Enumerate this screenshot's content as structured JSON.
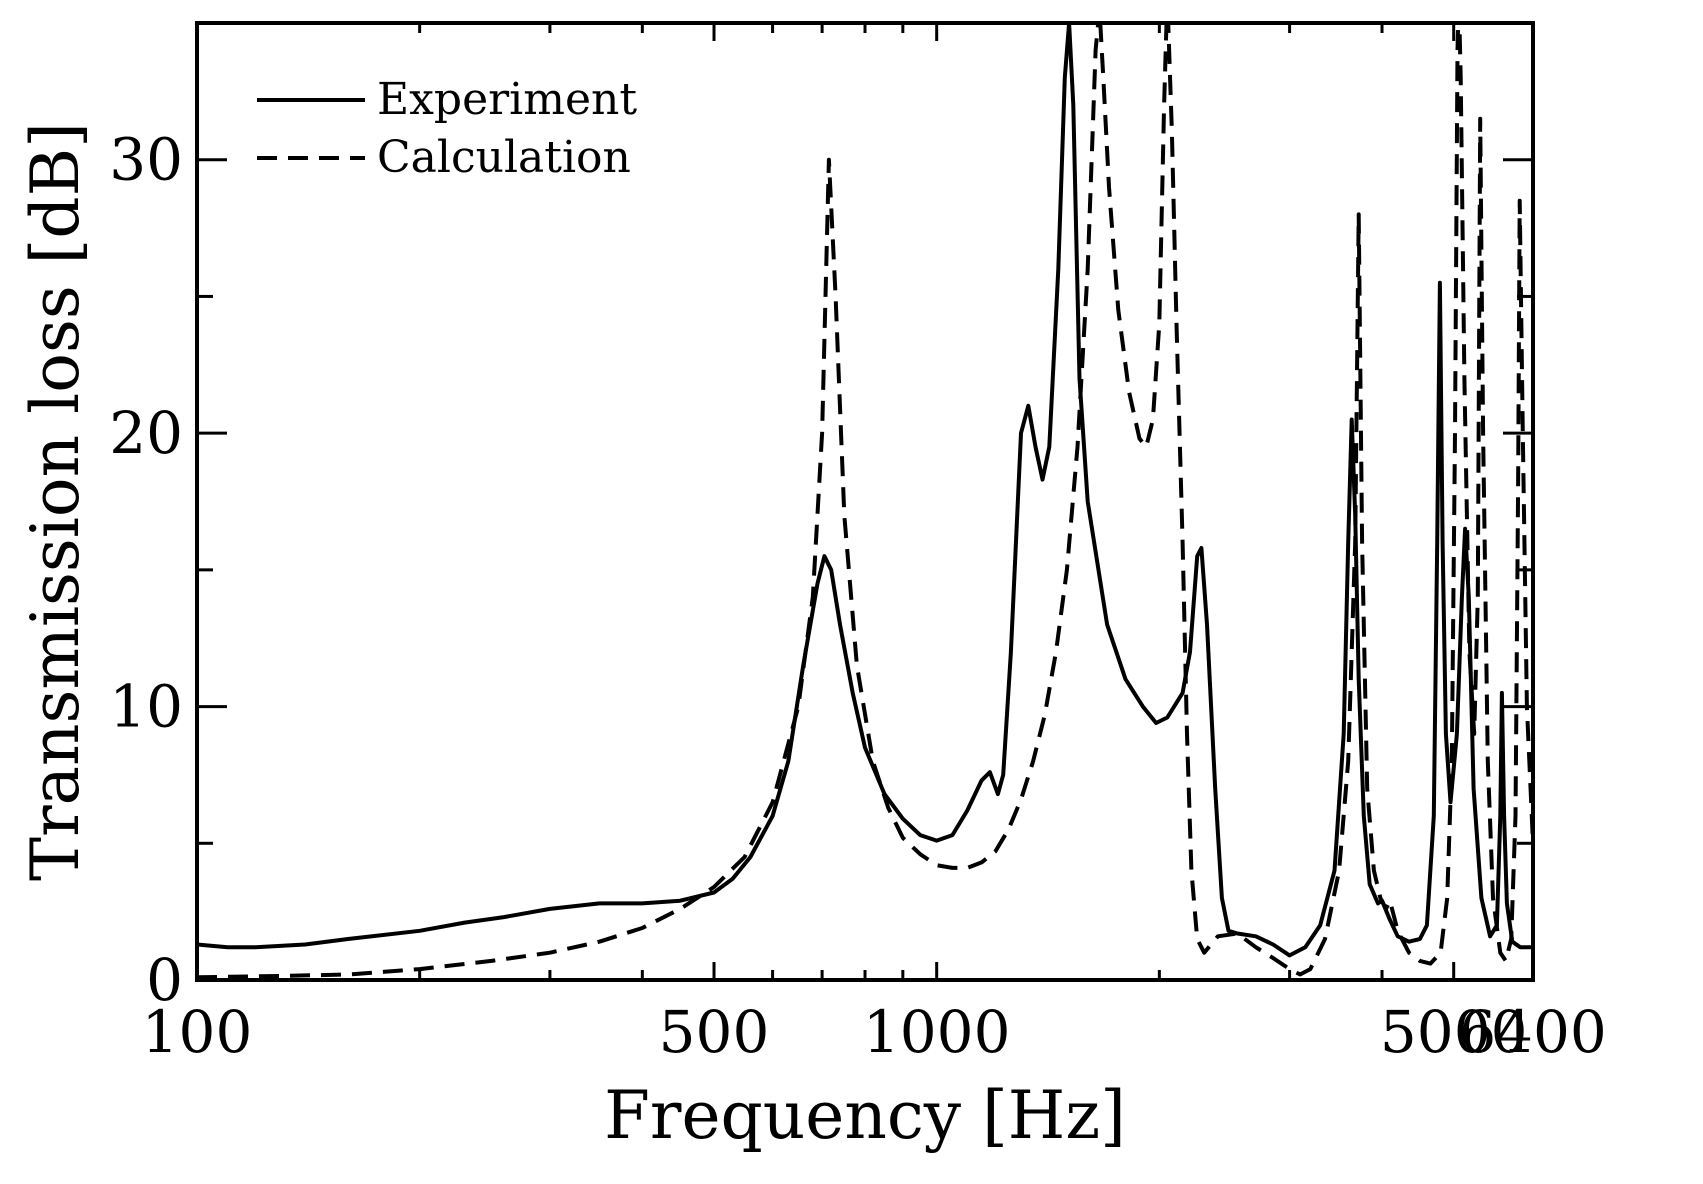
{
  "chart_data": {
    "type": "line",
    "xlabel": "Frequency [Hz]",
    "ylabel": "Transmission loss [dB]",
    "x_scale": "log",
    "xlim": [
      100,
      6400
    ],
    "ylim": [
      0,
      35
    ],
    "x_ticks": [
      {
        "value": 100,
        "label": "100"
      },
      {
        "value": 500,
        "label": "500"
      },
      {
        "value": 1000,
        "label": "1000"
      },
      {
        "value": 5000,
        "label": "5000"
      },
      {
        "value": 6400,
        "label": "6400"
      }
    ],
    "x_minor_ticks": [
      200,
      300,
      400,
      600,
      700,
      800,
      900,
      2000,
      3000,
      4000
    ],
    "y_ticks": [
      {
        "value": 0,
        "label": "0"
      },
      {
        "value": 10,
        "label": "10"
      },
      {
        "value": 20,
        "label": "20"
      },
      {
        "value": 30,
        "label": "30"
      }
    ],
    "y_minor_ticks": [
      5,
      15,
      25
    ],
    "legend_position": "top-left",
    "grid": false,
    "series": [
      {
        "name": "Experiment",
        "style": "solid",
        "color": "#000000",
        "points": [
          [
            100,
            1.3
          ],
          [
            110,
            1.2
          ],
          [
            120,
            1.2
          ],
          [
            140,
            1.3
          ],
          [
            160,
            1.5
          ],
          [
            200,
            1.8
          ],
          [
            230,
            2.1
          ],
          [
            260,
            2.3
          ],
          [
            300,
            2.6
          ],
          [
            350,
            2.8
          ],
          [
            400,
            2.8
          ],
          [
            450,
            2.9
          ],
          [
            500,
            3.2
          ],
          [
            530,
            3.7
          ],
          [
            560,
            4.5
          ],
          [
            600,
            6.0
          ],
          [
            630,
            8.0
          ],
          [
            660,
            11.5
          ],
          [
            690,
            14.5
          ],
          [
            705,
            15.5
          ],
          [
            720,
            15.0
          ],
          [
            740,
            13.0
          ],
          [
            770,
            10.5
          ],
          [
            800,
            8.5
          ],
          [
            850,
            6.8
          ],
          [
            900,
            5.9
          ],
          [
            950,
            5.3
          ],
          [
            1000,
            5.1
          ],
          [
            1050,
            5.3
          ],
          [
            1100,
            6.2
          ],
          [
            1150,
            7.3
          ],
          [
            1180,
            7.6
          ],
          [
            1210,
            6.8
          ],
          [
            1230,
            7.5
          ],
          [
            1260,
            12.0
          ],
          [
            1300,
            20.0
          ],
          [
            1330,
            21.0
          ],
          [
            1360,
            19.5
          ],
          [
            1390,
            18.3
          ],
          [
            1420,
            19.5
          ],
          [
            1460,
            26.0
          ],
          [
            1490,
            33.0
          ],
          [
            1510,
            35.0
          ],
          [
            1530,
            32.0
          ],
          [
            1560,
            22.0
          ],
          [
            1600,
            17.5
          ],
          [
            1700,
            13.0
          ],
          [
            1800,
            11.0
          ],
          [
            1900,
            10.0
          ],
          [
            1980,
            9.4
          ],
          [
            2050,
            9.6
          ],
          [
            2150,
            10.5
          ],
          [
            2200,
            12.0
          ],
          [
            2250,
            15.5
          ],
          [
            2280,
            15.8
          ],
          [
            2320,
            13.0
          ],
          [
            2380,
            7.0
          ],
          [
            2430,
            3.0
          ],
          [
            2480,
            1.8
          ],
          [
            2550,
            1.7
          ],
          [
            2700,
            1.6
          ],
          [
            2850,
            1.3
          ],
          [
            3000,
            0.9
          ],
          [
            3150,
            1.2
          ],
          [
            3300,
            2.0
          ],
          [
            3450,
            4.0
          ],
          [
            3550,
            9.0
          ],
          [
            3600,
            16.0
          ],
          [
            3640,
            20.5
          ],
          [
            3680,
            17.0
          ],
          [
            3720,
            11.0
          ],
          [
            3780,
            6.0
          ],
          [
            3850,
            3.5
          ],
          [
            3950,
            2.8
          ],
          [
            4000,
            2.9
          ],
          [
            4100,
            2.2
          ],
          [
            4200,
            1.6
          ],
          [
            4350,
            1.4
          ],
          [
            4500,
            1.5
          ],
          [
            4600,
            2.0
          ],
          [
            4700,
            6.0
          ],
          [
            4750,
            16.0
          ],
          [
            4790,
            25.5
          ],
          [
            4830,
            16.0
          ],
          [
            4880,
            9.0
          ],
          [
            4950,
            6.5
          ],
          [
            5050,
            9.0
          ],
          [
            5130,
            14.0
          ],
          [
            5180,
            16.5
          ],
          [
            5240,
            14.0
          ],
          [
            5320,
            7.0
          ],
          [
            5450,
            3.0
          ],
          [
            5600,
            1.6
          ],
          [
            5720,
            2.0
          ],
          [
            5780,
            6.0
          ],
          [
            5810,
            10.5
          ],
          [
            5850,
            6.0
          ],
          [
            5900,
            2.8
          ],
          [
            6000,
            1.4
          ],
          [
            6150,
            1.2
          ],
          [
            6400,
            1.2
          ]
        ]
      },
      {
        "name": "Calculation",
        "style": "dashed",
        "color": "#000000",
        "points": [
          [
            100,
            0.1
          ],
          [
            130,
            0.15
          ],
          [
            160,
            0.2
          ],
          [
            200,
            0.4
          ],
          [
            250,
            0.7
          ],
          [
            300,
            1.0
          ],
          [
            350,
            1.4
          ],
          [
            400,
            1.9
          ],
          [
            450,
            2.6
          ],
          [
            500,
            3.4
          ],
          [
            550,
            4.5
          ],
          [
            600,
            6.5
          ],
          [
            650,
            10.0
          ],
          [
            680,
            14.0
          ],
          [
            700,
            20.0
          ],
          [
            715,
            30.0
          ],
          [
            730,
            25.0
          ],
          [
            750,
            17.0
          ],
          [
            780,
            11.5
          ],
          [
            820,
            8.0
          ],
          [
            860,
            6.3
          ],
          [
            900,
            5.2
          ],
          [
            950,
            4.6
          ],
          [
            1000,
            4.2
          ],
          [
            1050,
            4.1
          ],
          [
            1100,
            4.1
          ],
          [
            1150,
            4.3
          ],
          [
            1200,
            4.7
          ],
          [
            1250,
            5.5
          ],
          [
            1300,
            6.6
          ],
          [
            1350,
            8.0
          ],
          [
            1400,
            9.7
          ],
          [
            1450,
            12.0
          ],
          [
            1500,
            15.0
          ],
          [
            1550,
            19.5
          ],
          [
            1600,
            26.0
          ],
          [
            1640,
            34.0
          ],
          [
            1660,
            35.5
          ],
          [
            1680,
            33.0
          ],
          [
            1710,
            29.0
          ],
          [
            1760,
            24.5
          ],
          [
            1820,
            21.5
          ],
          [
            1880,
            19.8
          ],
          [
            1920,
            19.5
          ],
          [
            1960,
            20.5
          ],
          [
            2000,
            24.0
          ],
          [
            2030,
            32.0
          ],
          [
            2050,
            36.0
          ],
          [
            2080,
            31.0
          ],
          [
            2110,
            24.0
          ],
          [
            2150,
            16.0
          ],
          [
            2180,
            9.0
          ],
          [
            2210,
            4.0
          ],
          [
            2250,
            1.5
          ],
          [
            2300,
            1.0
          ],
          [
            2400,
            1.6
          ],
          [
            2550,
            1.7
          ],
          [
            2700,
            1.2
          ],
          [
            2850,
            0.8
          ],
          [
            3000,
            0.4
          ],
          [
            3100,
            0.2
          ],
          [
            3200,
            0.4
          ],
          [
            3350,
            1.5
          ],
          [
            3500,
            4.0
          ],
          [
            3600,
            8.0
          ],
          [
            3680,
            16.0
          ],
          [
            3720,
            28.0
          ],
          [
            3760,
            16.0
          ],
          [
            3820,
            7.0
          ],
          [
            3900,
            4.0
          ],
          [
            3980,
            3.0
          ],
          [
            4050,
            2.6
          ],
          [
            4100,
            2.9
          ],
          [
            4200,
            1.8
          ],
          [
            4350,
            1.0
          ],
          [
            4500,
            0.7
          ],
          [
            4650,
            0.6
          ],
          [
            4800,
            1.0
          ],
          [
            4900,
            3.0
          ],
          [
            4970,
            8.0
          ],
          [
            5020,
            20.0
          ],
          [
            5060,
            34.0
          ],
          [
            5080,
            36.0
          ],
          [
            5110,
            33.0
          ],
          [
            5170,
            22.0
          ],
          [
            5250,
            12.0
          ],
          [
            5330,
            9.0
          ],
          [
            5390,
            14.0
          ],
          [
            5430,
            31.5
          ],
          [
            5480,
            20.0
          ],
          [
            5560,
            8.0
          ],
          [
            5650,
            3.0
          ],
          [
            5780,
            1.0
          ],
          [
            5880,
            0.7
          ],
          [
            5980,
            1.5
          ],
          [
            6060,
            6.0
          ],
          [
            6110,
            18.0
          ],
          [
            6140,
            28.5
          ],
          [
            6200,
            20.0
          ],
          [
            6280,
            10.0
          ],
          [
            6400,
            5.0
          ]
        ]
      }
    ]
  }
}
